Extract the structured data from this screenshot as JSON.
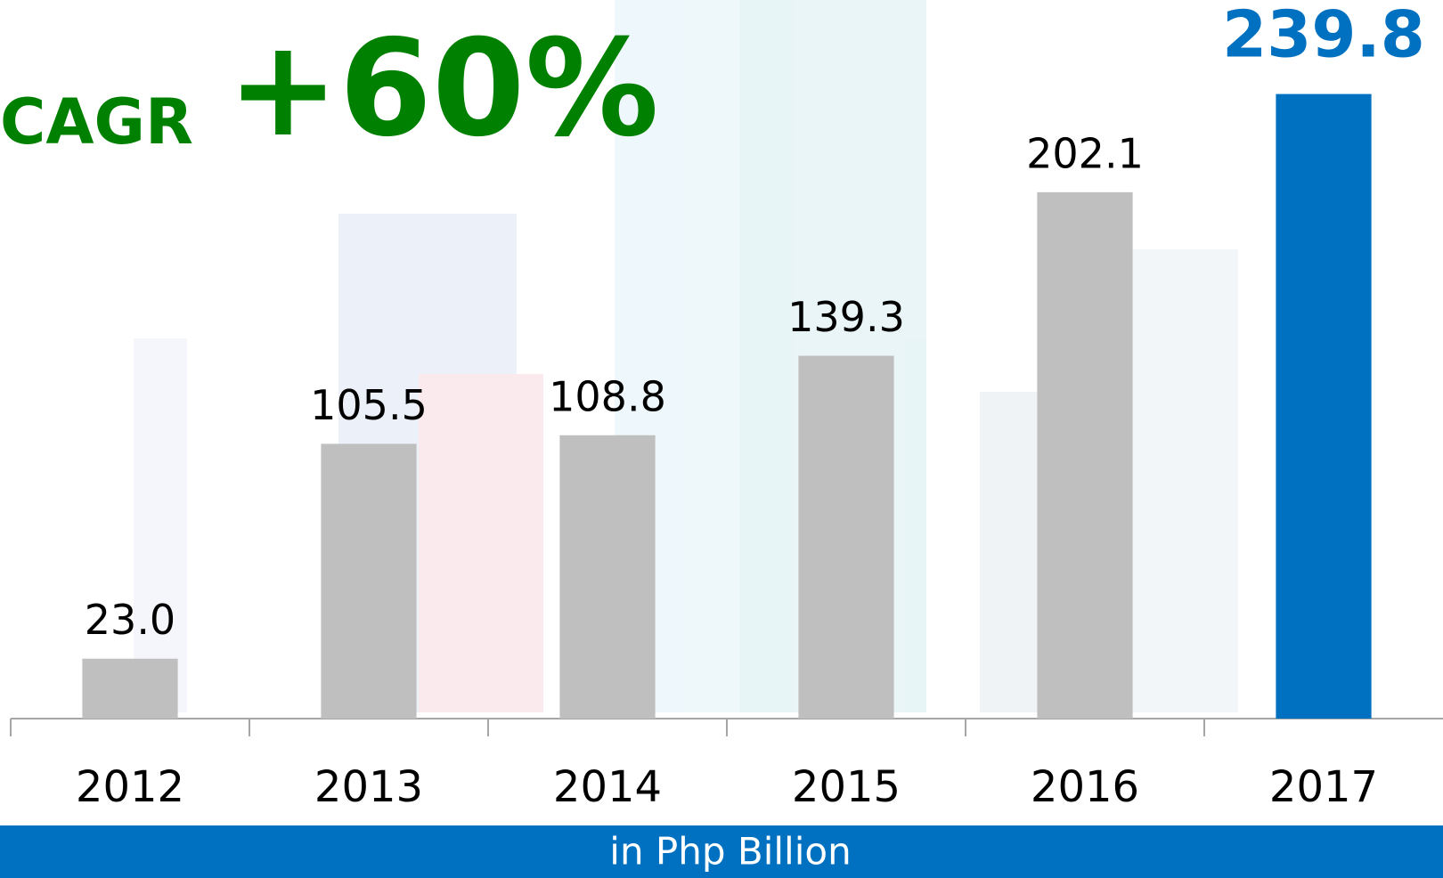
{
  "chart_data": {
    "type": "bar",
    "annotation": {
      "label": "CAGR",
      "value": "+60%"
    },
    "unit_note": "in Php Billion",
    "categories": [
      "2012",
      "2013",
      "2014",
      "2015",
      "2016",
      "2017"
    ],
    "values": [
      23.0,
      105.5,
      108.8,
      139.3,
      202.1,
      239.8
    ],
    "value_labels": [
      "23.0",
      "105.5",
      "108.8",
      "139.3",
      "202.1",
      "239.8"
    ],
    "colors": [
      "#bfbfbf",
      "#bfbfbf",
      "#bfbfbf",
      "#bfbfbf",
      "#bfbfbf",
      "#0070c0"
    ],
    "label_colors": [
      "#000000",
      "#000000",
      "#000000",
      "#000000",
      "#000000",
      "#0070c0"
    ],
    "ylim": [
      0,
      240
    ]
  }
}
